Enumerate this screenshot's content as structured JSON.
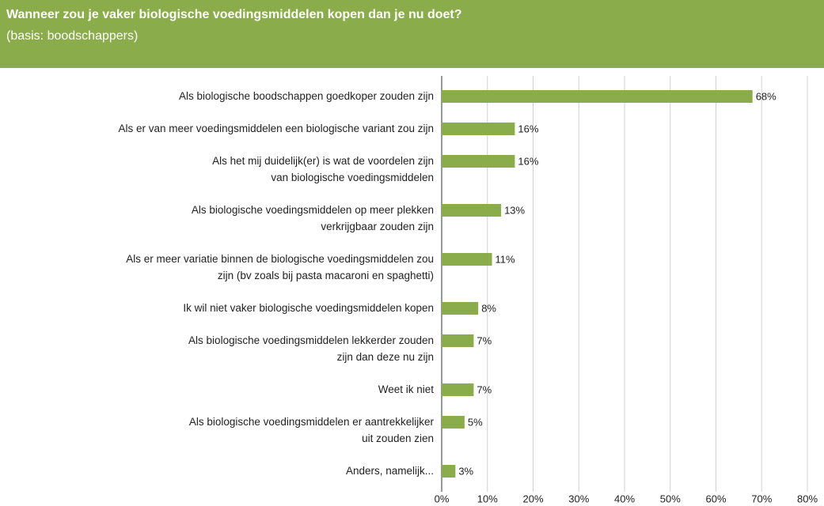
{
  "chart_data": {
    "type": "bar",
    "orientation": "horizontal",
    "title": "Wanneer zou je vaker biologische voedingsmiddelen kopen dan je nu doet?",
    "subtitle": "(basis: boodschappers)",
    "categories": [
      "Als biologische boodschappen goedkoper zouden zijn",
      "Als er van meer voedingsmiddelen een biologische variant zou zijn",
      "Als het mij duidelijk(er) is wat de voordelen zijn\nvan biologische voedingsmiddelen",
      "Als biologische voedingsmiddelen op meer plekken\nverkrijgbaar zouden zijn",
      "Als er meer variatie binnen de biologische voedingsmiddelen zou\nzijn (bv zoals bij pasta macaroni en spaghetti)",
      "Ik wil niet vaker biologische voedingsmiddelen kopen",
      "Als biologische voedingsmiddelen lekkerder zouden\nzijn dan deze nu zijn",
      "Weet ik niet",
      "Als biologische voedingsmiddelen er aantrekkelijker\nuit zouden zien",
      "Anders, namelijk..."
    ],
    "values": [
      68,
      16,
      16,
      13,
      11,
      8,
      7,
      7,
      5,
      3
    ],
    "value_labels": [
      "68%",
      "16%",
      "16%",
      "13%",
      "11%",
      "8%",
      "7%",
      "7%",
      "5%",
      "3%"
    ],
    "color": "#8aac4a",
    "xlim": [
      0,
      80
    ],
    "xticks": [
      {
        "value": 0,
        "label": "0%"
      },
      {
        "value": 10,
        "label": "10%"
      },
      {
        "value": 20,
        "label": "20%"
      },
      {
        "value": 30,
        "label": "30%"
      },
      {
        "value": 40,
        "label": "40%"
      },
      {
        "value": 50,
        "label": "50%"
      },
      {
        "value": 60,
        "label": "60%"
      },
      {
        "value": 70,
        "label": "70%"
      },
      {
        "value": 80,
        "label": "80%"
      }
    ],
    "grid": true
  }
}
